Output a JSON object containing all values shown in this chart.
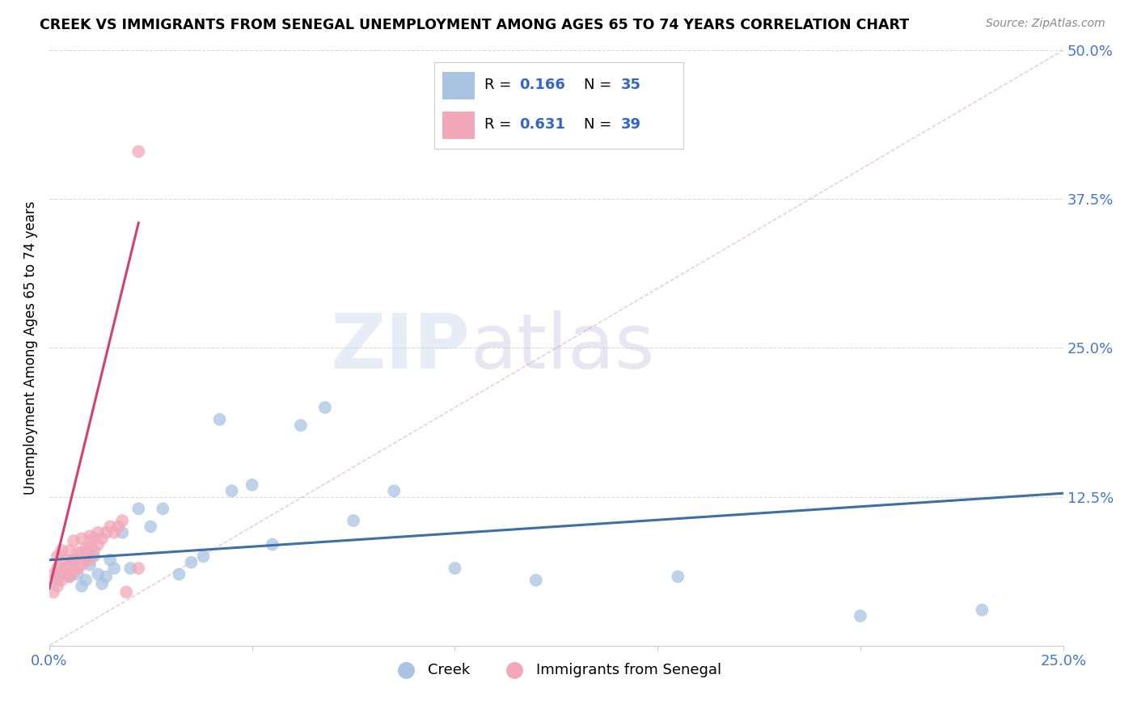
{
  "title": "CREEK VS IMMIGRANTS FROM SENEGAL UNEMPLOYMENT AMONG AGES 65 TO 74 YEARS CORRELATION CHART",
  "source": "Source: ZipAtlas.com",
  "ylabel": "Unemployment Among Ages 65 to 74 years",
  "xlim": [
    0.0,
    0.25
  ],
  "ylim": [
    0.0,
    0.5
  ],
  "xticks": [
    0.0,
    0.05,
    0.1,
    0.15,
    0.2,
    0.25
  ],
  "xticklabels": [
    "0.0%",
    "",
    "",
    "",
    "",
    "25.0%"
  ],
  "yticks_right": [
    0.0,
    0.125,
    0.25,
    0.375,
    0.5
  ],
  "yticklabels_right": [
    "",
    "12.5%",
    "25.0%",
    "37.5%",
    "50.0%"
  ],
  "creek_R": "0.166",
  "creek_N": "35",
  "senegal_R": "0.631",
  "senegal_N": "39",
  "creek_color": "#a8c4e2",
  "senegal_color": "#f2a8b8",
  "creek_line_color": "#3d6fa8",
  "senegal_line_color": "#d44070",
  "ref_line_color": "#e0a0b0",
  "watermark_zip": "ZIP",
  "watermark_atlas": "atlas",
  "creek_scatter_x": [
    0.002,
    0.004,
    0.005,
    0.006,
    0.007,
    0.008,
    0.009,
    0.01,
    0.011,
    0.012,
    0.013,
    0.014,
    0.015,
    0.016,
    0.018,
    0.02,
    0.022,
    0.025,
    0.028,
    0.032,
    0.035,
    0.038,
    0.042,
    0.045,
    0.05,
    0.055,
    0.062,
    0.068,
    0.075,
    0.085,
    0.1,
    0.12,
    0.155,
    0.2,
    0.23
  ],
  "creek_scatter_y": [
    0.055,
    0.065,
    0.058,
    0.072,
    0.06,
    0.05,
    0.055,
    0.068,
    0.075,
    0.06,
    0.052,
    0.058,
    0.072,
    0.065,
    0.095,
    0.065,
    0.115,
    0.1,
    0.115,
    0.06,
    0.07,
    0.075,
    0.19,
    0.13,
    0.135,
    0.085,
    0.185,
    0.2,
    0.105,
    0.13,
    0.065,
    0.055,
    0.058,
    0.025,
    0.03
  ],
  "senegal_scatter_x": [
    0.001,
    0.001,
    0.002,
    0.002,
    0.002,
    0.003,
    0.003,
    0.003,
    0.004,
    0.004,
    0.005,
    0.005,
    0.005,
    0.006,
    0.006,
    0.006,
    0.007,
    0.007,
    0.008,
    0.008,
    0.008,
    0.009,
    0.009,
    0.01,
    0.01,
    0.01,
    0.011,
    0.011,
    0.012,
    0.012,
    0.013,
    0.014,
    0.015,
    0.016,
    0.017,
    0.018,
    0.019,
    0.022,
    0.022
  ],
  "senegal_scatter_y": [
    0.045,
    0.06,
    0.05,
    0.065,
    0.075,
    0.055,
    0.065,
    0.08,
    0.06,
    0.072,
    0.058,
    0.068,
    0.08,
    0.062,
    0.072,
    0.088,
    0.065,
    0.078,
    0.068,
    0.078,
    0.09,
    0.072,
    0.082,
    0.072,
    0.082,
    0.092,
    0.08,
    0.09,
    0.085,
    0.095,
    0.09,
    0.095,
    0.1,
    0.095,
    0.1,
    0.105,
    0.045,
    0.415,
    0.065
  ],
  "creek_trend_x": [
    0.0,
    0.25
  ],
  "creek_trend_y": [
    0.072,
    0.128
  ],
  "senegal_trend_x": [
    0.0,
    0.022
  ],
  "senegal_trend_y": [
    0.048,
    0.355
  ],
  "ref_line_x": [
    0.0,
    0.25
  ],
  "ref_line_y": [
    0.0,
    0.5
  ]
}
